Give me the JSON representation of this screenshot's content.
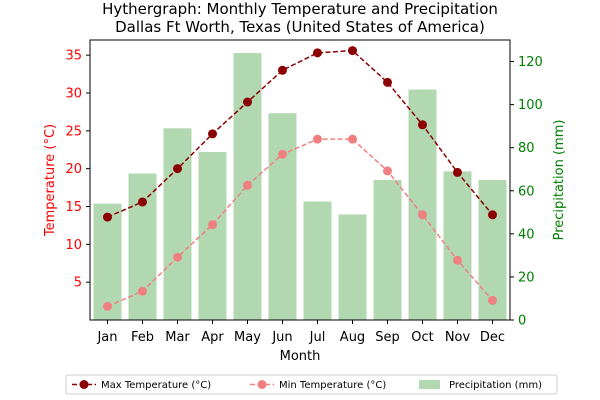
{
  "chart_data": {
    "type": "bar+line",
    "title_line1": "Hythergraph: Monthly Temperature and Precipitation",
    "title_line2": "Dallas Ft Worth, Texas (United States of America)",
    "xlabel": "Month",
    "ylabel_left": "Temperature (°C)",
    "ylabel_right": "Precipitation (mm)",
    "categories": [
      "Jan",
      "Feb",
      "Mar",
      "Apr",
      "May",
      "Jun",
      "Jul",
      "Aug",
      "Sep",
      "Oct",
      "Nov",
      "Dec"
    ],
    "ylim_left": [
      0,
      37
    ],
    "ylim_right": [
      0,
      130
    ],
    "yticks_left": [
      5,
      10,
      15,
      20,
      25,
      30,
      35
    ],
    "yticks_right": [
      0,
      20,
      40,
      60,
      80,
      100,
      120
    ],
    "series": [
      {
        "name": "Max Temperature (°C)",
        "kind": "line",
        "axis": "left",
        "color": "#8b0000",
        "values": [
          13.6,
          15.6,
          20.0,
          24.6,
          28.8,
          33.0,
          35.3,
          35.6,
          31.4,
          25.8,
          19.5,
          13.9
        ]
      },
      {
        "name": "Min Temperature (°C)",
        "kind": "line",
        "axis": "left",
        "color": "#f08080",
        "values": [
          1.8,
          3.8,
          8.3,
          12.6,
          17.8,
          21.9,
          23.9,
          23.9,
          19.7,
          13.9,
          7.9,
          2.6
        ]
      },
      {
        "name": "Precipitation (mm)",
        "kind": "bar",
        "axis": "right",
        "color": "#b2d8b2",
        "values": [
          54,
          68,
          89,
          78,
          124,
          96,
          55,
          49,
          65,
          107,
          69,
          65
        ]
      }
    ],
    "legend_position": "bottom",
    "grid": false
  },
  "colors": {
    "left_axis": "#ff0000",
    "right_axis": "#008000"
  }
}
